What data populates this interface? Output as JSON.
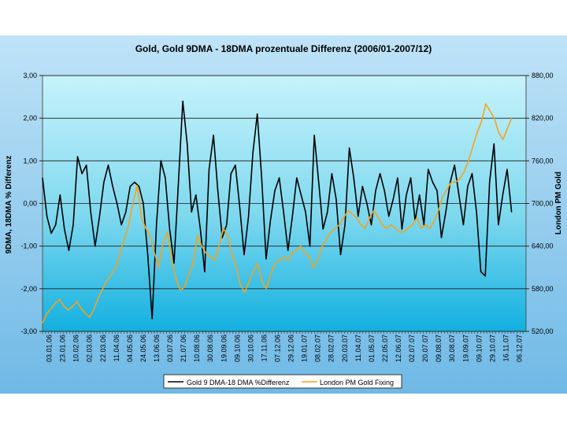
{
  "chart_data": {
    "type": "line",
    "title": "Gold,  Gold 9DMA - 18DMA prozentuale Differenz (2006/01-2007/12)",
    "ylabel": "9DMA, 18DMA % Differenz",
    "ylabel_right": "London PM Gold",
    "ylim": [
      -3,
      3
    ],
    "ylim_right": [
      520,
      880
    ],
    "y_ticks": [
      "3,00",
      "2,00",
      "1,00",
      "0,00",
      "-1,00",
      "-2,00",
      "-3,00"
    ],
    "y_ticks_right": [
      "880,00",
      "820,00",
      "760,00",
      "700,00",
      "640,00",
      "580,00",
      "520,00"
    ],
    "x_ticks": [
      "03.01.06",
      "23.01.06",
      "10.02.06",
      "02.03.06",
      "22.03.06",
      "11.04.06",
      "04.05.06",
      "24.05.06",
      "13.06.06",
      "03.07.06",
      "21.07.06",
      "10.08.06",
      "30.08.06",
      "19.09.06",
      "09.10.06",
      "30.10.06",
      "17.11.06",
      "07.12.06",
      "29.12.06",
      "19.01.07",
      "08.02.07",
      "28.02.07",
      "20.03.07",
      "11.04.07",
      "01.05.07",
      "22.05.07",
      "12.06.07",
      "02.07.07",
      "20.07.07",
      "09.08.07",
      "30.08.07",
      "19.09.07",
      "09.10.07",
      "29.10.07",
      "16.11.07",
      "06.12.07"
    ],
    "legend_position": "bottom",
    "grid": true,
    "series": [
      {
        "name": "Gold 9 DMA-18 DMA %Differenz",
        "axis": "left",
        "color": "#000000",
        "values": [
          0.6,
          -0.3,
          -0.7,
          -0.5,
          0.2,
          -0.6,
          -1.1,
          -0.5,
          1.1,
          0.7,
          0.9,
          -0.2,
          -1.0,
          -0.3,
          0.5,
          0.9,
          0.4,
          0.0,
          -0.5,
          -0.2,
          0.4,
          0.5,
          0.4,
          0.0,
          -1.2,
          -2.7,
          -0.5,
          1.0,
          0.6,
          -0.6,
          -1.4,
          0.5,
          2.4,
          1.4,
          -0.2,
          0.2,
          -0.6,
          -1.6,
          0.8,
          1.6,
          0.3,
          -0.8,
          -0.5,
          0.7,
          0.9,
          -0.1,
          -1.2,
          -0.3,
          1.2,
          2.1,
          0.6,
          -1.3,
          -0.4,
          0.3,
          0.6,
          -0.2,
          -1.1,
          -0.3,
          0.6,
          0.2,
          -0.2,
          -1.0,
          1.6,
          0.5,
          -0.6,
          -0.2,
          0.7,
          0.1,
          -1.2,
          -0.5,
          1.3,
          0.6,
          -0.3,
          0.4,
          0.0,
          -0.5,
          0.3,
          0.7,
          0.3,
          -0.3,
          0.1,
          0.6,
          -0.6,
          0.2,
          0.6,
          -0.4,
          0.2,
          -0.5,
          0.8,
          0.5,
          0.3,
          -0.8,
          -0.2,
          0.5,
          0.9,
          0.2,
          -0.5,
          0.4,
          0.7,
          -0.2,
          -1.6,
          -1.7,
          0.5,
          1.4,
          -0.5,
          0.2,
          0.8,
          -0.2
        ],
        "x_end_tick": "06.12.07"
      },
      {
        "name": "London PM Gold Fixing",
        "axis": "right",
        "color": "#f5a21e",
        "values": [
          532,
          545,
          552,
          560,
          565,
          555,
          550,
          555,
          562,
          552,
          545,
          540,
          552,
          568,
          580,
          592,
          600,
          610,
          630,
          650,
          670,
          700,
          725,
          680,
          665,
          655,
          630,
          610,
          645,
          660,
          620,
          595,
          578,
          582,
          600,
          615,
          655,
          640,
          630,
          625,
          620,
          640,
          665,
          655,
          630,
          610,
          585,
          575,
          590,
          605,
          615,
          590,
          580,
          600,
          615,
          620,
          625,
          620,
          630,
          635,
          640,
          630,
          625,
          610,
          620,
          640,
          650,
          660,
          665,
          670,
          680,
          690,
          685,
          680,
          670,
          665,
          680,
          690,
          680,
          670,
          665,
          670,
          665,
          660,
          660,
          665,
          670,
          680,
          665,
          670,
          665,
          675,
          690,
          710,
          720,
          730,
          730,
          735,
          745,
          760,
          780,
          800,
          815,
          840,
          830,
          820,
          800,
          790,
          805,
          820
        ]
      }
    ]
  }
}
